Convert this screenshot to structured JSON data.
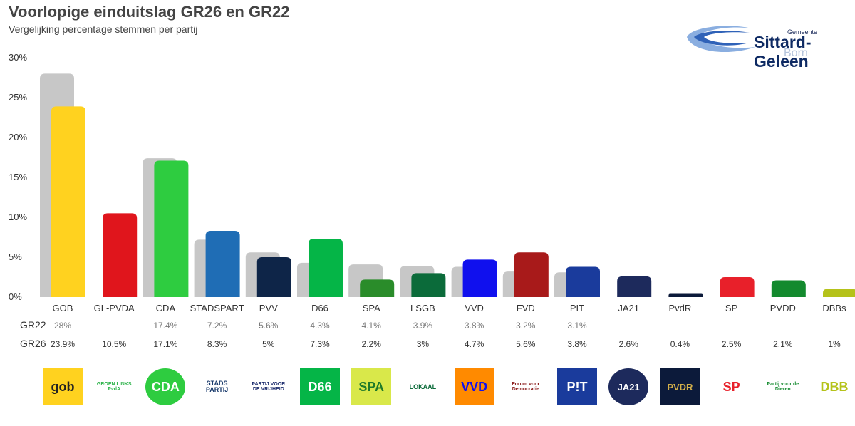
{
  "header": {
    "title": "Voorlopige einduitslag GR26 en GR22",
    "subtitle": "Vergelijking percentage stemmen per partij"
  },
  "brand": {
    "line1": "Gemeente",
    "line2": "Sittard-Geleen",
    "line3": "Born"
  },
  "chart_data": {
    "type": "bar",
    "categories": [
      "GOB",
      "GL-PVDA",
      "CDA",
      "STADSPART",
      "PVV",
      "D66",
      "SPA",
      "LSGB",
      "VVD",
      "FVD",
      "PIT",
      "JA21",
      "PvdR",
      "SP",
      "PVDD",
      "DBBs"
    ],
    "series": [
      {
        "name": "GR22",
        "values": [
          28,
          null,
          17.4,
          7.2,
          5.6,
          4.3,
          4.1,
          3.9,
          3.8,
          3.2,
          3.1,
          null,
          null,
          null,
          null,
          null
        ],
        "color": "#c7c7c7",
        "labels": [
          "28%",
          "",
          "17.4%",
          "7.2%",
          "5.6%",
          "4.3%",
          "4.1%",
          "3.9%",
          "3.8%",
          "3.2%",
          "3.1%",
          "",
          "",
          "",
          "",
          ""
        ]
      },
      {
        "name": "GR26",
        "values": [
          23.9,
          10.5,
          17.1,
          8.3,
          5,
          7.3,
          2.2,
          3,
          4.7,
          5.6,
          3.8,
          2.6,
          0.4,
          2.5,
          2.1,
          1
        ],
        "colors": [
          "#ffd21f",
          "#e0151c",
          "#2ecc40",
          "#1f6db5",
          "#0e2548",
          "#05b547",
          "#2a8c2a",
          "#0b6b3a",
          "#1010ee",
          "#a81a1a",
          "#1a3b9c",
          "#1d2a5c",
          "#0c1a3a",
          "#e8202a",
          "#138a2e",
          "#b5c21a"
        ],
        "labels": [
          "23.9%",
          "10.5%",
          "17.1%",
          "8.3%",
          "5%",
          "7.3%",
          "2.2%",
          "3%",
          "4.7%",
          "5.6%",
          "3.8%",
          "2.6%",
          "0.4%",
          "2.5%",
          "2.1%",
          "1%"
        ]
      }
    ],
    "yticks": [
      "0%",
      "5%",
      "10%",
      "15%",
      "20%",
      "25%",
      "30%"
    ],
    "ylim": [
      0,
      30
    ],
    "grid": false
  },
  "logos": [
    {
      "name": "gob-logo",
      "text": "gob",
      "bg": "#ffd21f",
      "fg": "#222"
    },
    {
      "name": "groenlinks-pvda-logo",
      "text": "GROEN LINKS PvdA",
      "bg": "#ffffff",
      "fg": "#2db34a"
    },
    {
      "name": "cda-logo",
      "text": "CDA",
      "bg": "#2ecc40",
      "fg": "#ffffff"
    },
    {
      "name": "stadspartij-logo",
      "text": "STADS PARTIJ",
      "bg": "#ffffff",
      "fg": "#1a3b6c"
    },
    {
      "name": "pvv-logo",
      "text": "PARTIJ VOOR DE VRIJHEID",
      "bg": "#ffffff",
      "fg": "#1a2a6c"
    },
    {
      "name": "d66-logo",
      "text": "D66",
      "bg": "#05b547",
      "fg": "#ffffff"
    },
    {
      "name": "spa-logo",
      "text": "SPA",
      "bg": "#d9e84a",
      "fg": "#1f7a2a"
    },
    {
      "name": "lokaal-logo",
      "text": "LOKAAL",
      "bg": "#ffffff",
      "fg": "#0b6b3a"
    },
    {
      "name": "vvd-logo",
      "text": "VVD",
      "bg": "#ff8a00",
      "fg": "#1010ee"
    },
    {
      "name": "fvd-logo",
      "text": "Forum voor Democratie",
      "bg": "#ffffff",
      "fg": "#8a1a1a"
    },
    {
      "name": "pit-logo",
      "text": "P!T",
      "bg": "#1a3b9c",
      "fg": "#ffffff"
    },
    {
      "name": "ja21-logo",
      "text": "JA21",
      "bg": "#1d2a5c",
      "fg": "#ffffff"
    },
    {
      "name": "pvdr-logo",
      "text": "PVDR",
      "bg": "#0c1a3a",
      "fg": "#d4b04a"
    },
    {
      "name": "sp-logo",
      "text": "SP",
      "bg": "#ffffff",
      "fg": "#e8202a"
    },
    {
      "name": "pvdd-logo",
      "text": "Partij voor de Dieren",
      "bg": "#ffffff",
      "fg": "#138a2e"
    },
    {
      "name": "dbb-logo",
      "text": "DBB",
      "bg": "#ffffff",
      "fg": "#b5c21a"
    }
  ]
}
